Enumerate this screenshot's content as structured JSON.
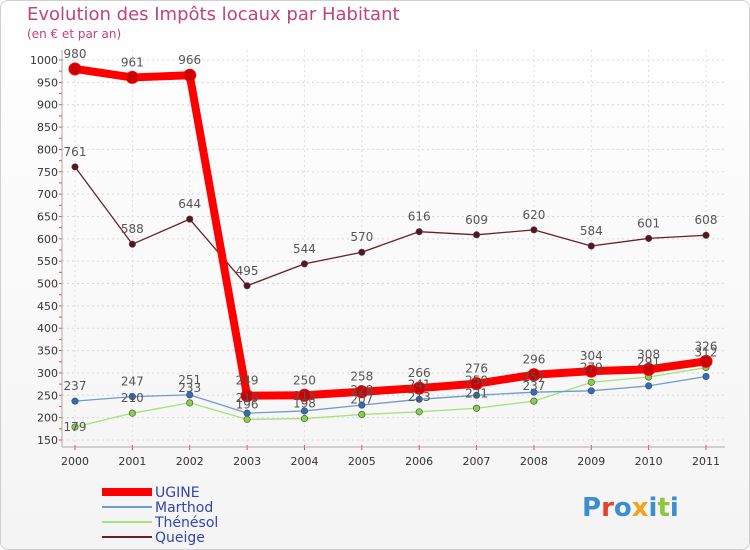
{
  "chart_data": {
    "type": "line",
    "title": "Evolution des Impôts locaux par Habitant",
    "subtitle": "(en € et par an)",
    "xlabel": "",
    "ylabel": "",
    "ylim": [
      150,
      1000
    ],
    "yticks": [
      150,
      200,
      250,
      300,
      350,
      400,
      450,
      500,
      550,
      600,
      650,
      700,
      750,
      800,
      850,
      900,
      950,
      1000
    ],
    "categories": [
      "2000",
      "2001",
      "2002",
      "2003",
      "2004",
      "2005",
      "2006",
      "2007",
      "2008",
      "2009",
      "2010",
      "2011"
    ],
    "series": [
      {
        "name": "UGINE",
        "color": "#ff0000",
        "values": [
          980,
          961,
          966,
          249,
          250,
          258,
          266,
          276,
          296,
          304,
          308,
          326
        ]
      },
      {
        "name": "Marthod",
        "color": "#6f9ccc",
        "values": [
          237,
          247,
          251,
          210,
          215,
          228,
          241,
          250,
          257,
          260,
          271,
          292
        ]
      },
      {
        "name": "Thénésol",
        "color": "#a8e07a",
        "values": [
          179,
          210,
          233,
          196,
          198,
          207,
          213,
          221,
          237,
          279,
          291,
          312
        ]
      },
      {
        "name": "Queige",
        "color": "#6b1e2a",
        "values": [
          761,
          588,
          644,
          495,
          544,
          570,
          616,
          609,
          620,
          584,
          601,
          608
        ]
      }
    ],
    "labels": {
      "UGINE": [
        "980",
        "961",
        "966",
        "249",
        "250",
        "258",
        "266",
        "276",
        "296",
        "304",
        "308",
        "326"
      ],
      "Marthod": [
        "237",
        "247",
        "251",
        "210",
        "215",
        "228",
        "241",
        "250",
        "257",
        "",
        "",
        ""
      ],
      "Thénésol": [
        "179",
        "210",
        "233",
        "196",
        "198",
        "207",
        "213",
        "221",
        "237",
        "279",
        "291",
        "312"
      ],
      "Queige": [
        "761",
        "588",
        "644",
        "495",
        "544",
        "570",
        "616",
        "609",
        "620",
        "584",
        "601",
        "608"
      ]
    }
  },
  "logo_text": "Proxiti"
}
